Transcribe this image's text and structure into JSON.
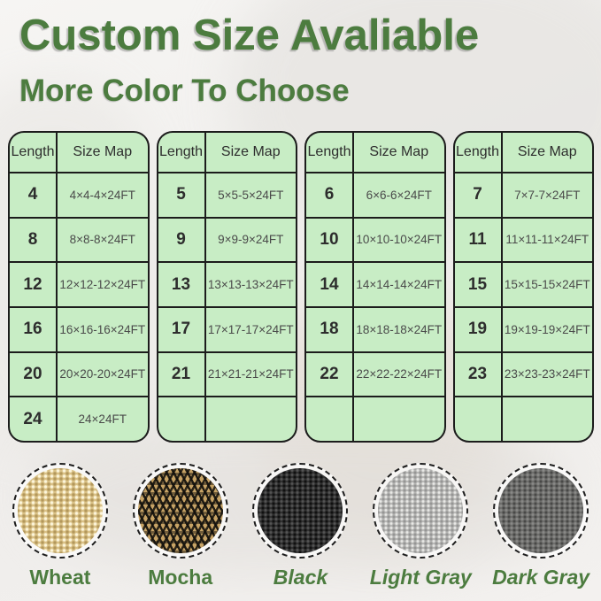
{
  "title": "Custom Size Avaliable",
  "subtitle": "More Color To Choose",
  "table_headers": [
    "Length",
    "Size Map"
  ],
  "tables": [
    {
      "rows": [
        [
          "4",
          "4×4-4×24FT"
        ],
        [
          "8",
          "8×8-8×24FT"
        ],
        [
          "12",
          "12×12-12×24FT"
        ],
        [
          "16",
          "16×16-16×24FT"
        ],
        [
          "20",
          "20×20-20×24FT"
        ],
        [
          "24",
          "24×24FT"
        ]
      ]
    },
    {
      "rows": [
        [
          "5",
          "5×5-5×24FT"
        ],
        [
          "9",
          "9×9-9×24FT"
        ],
        [
          "13",
          "13×13-13×24FT"
        ],
        [
          "17",
          "17×17-17×24FT"
        ],
        [
          "21",
          "21×21-21×24FT"
        ],
        [
          "",
          ""
        ]
      ]
    },
    {
      "rows": [
        [
          "6",
          "6×6-6×24FT"
        ],
        [
          "10",
          "10×10-10×24FT"
        ],
        [
          "14",
          "14×14-14×24FT"
        ],
        [
          "18",
          "18×18-18×24FT"
        ],
        [
          "22",
          "22×22-22×24FT"
        ],
        [
          "",
          ""
        ]
      ]
    },
    {
      "rows": [
        [
          "7",
          "7×7-7×24FT"
        ],
        [
          "11",
          "11×11-11×24FT"
        ],
        [
          "15",
          "15×15-15×24FT"
        ],
        [
          "19",
          "19×19-19×24FT"
        ],
        [
          "23",
          "23×23-23×24FT"
        ],
        [
          "",
          ""
        ]
      ]
    }
  ],
  "colors_section": {
    "swatches": [
      {
        "name": "Wheat",
        "italic": false,
        "base_color": "#d9c186"
      },
      {
        "name": "Mocha",
        "italic": false,
        "base_color": "#c7a365"
      },
      {
        "name": "Black",
        "italic": true,
        "base_color": "#2e2e2e"
      },
      {
        "name": "Light Gray",
        "italic": true,
        "base_color": "#b4b4b2"
      },
      {
        "name": "Dark Gray",
        "italic": true,
        "base_color": "#6c6c6a"
      }
    ]
  },
  "theme": {
    "accent_green": "#4c7c3f",
    "table_background": "#c8edc5",
    "table_border": "#1c1c1c"
  }
}
